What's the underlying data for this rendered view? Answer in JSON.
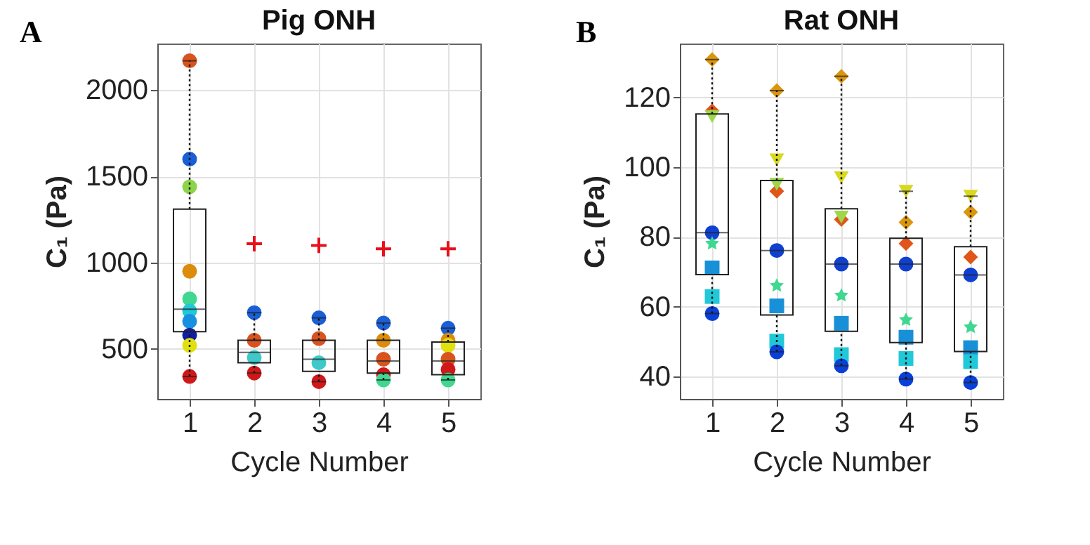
{
  "chart_data": [
    {
      "type": "box",
      "title": "Pig ONH",
      "xlabel": "Cycle Number",
      "ylabel": "C₁ (Pa)",
      "annotations": [
        "A"
      ],
      "categories": [
        "1",
        "2",
        "3",
        "4",
        "5"
      ],
      "ylim": [
        210,
        2270
      ],
      "yticks": [
        500,
        1000,
        1500,
        2000
      ],
      "grid": true,
      "line_style": "dotted",
      "boxes": [
        {
          "low": 340,
          "q1": 600,
          "median": 730,
          "q3": 1310,
          "high": 2170
        },
        {
          "low": 360,
          "q1": 420,
          "median": 480,
          "q3": 550,
          "high": 710,
          "outliers": [
            1110
          ]
        },
        {
          "low": 310,
          "q1": 370,
          "median": 440,
          "q3": 550,
          "high": 680,
          "outliers": [
            1100
          ]
        },
        {
          "low": 320,
          "q1": 360,
          "median": 430,
          "q3": 550,
          "high": 650,
          "outliers": [
            1080
          ]
        },
        {
          "low": 320,
          "q1": 350,
          "median": 430,
          "q3": 540,
          "high": 620,
          "outliers": [
            1080
          ]
        }
      ],
      "series": [
        {
          "type": "scatter",
          "marker": "circle",
          "x": [
            "1",
            "1",
            "1",
            "1",
            "1",
            "1",
            "1",
            "1",
            "1",
            "1",
            "2",
            "2",
            "2",
            "2",
            "3",
            "3",
            "3",
            "3",
            "4",
            "4",
            "4",
            "4",
            "4",
            "5",
            "5",
            "5",
            "5",
            "5",
            "5"
          ],
          "values": [
            2170,
            1600,
            1440,
            950,
            790,
            720,
            660,
            580,
            520,
            340,
            710,
            550,
            450,
            360,
            680,
            560,
            420,
            310,
            650,
            550,
            440,
            350,
            320,
            620,
            550,
            520,
            440,
            380,
            320
          ],
          "colors": [
            "#d9531e",
            "#1a5fd6",
            "#8cd44a",
            "#dc8c0a",
            "#40d890",
            "#20c8d8",
            "#1890e0",
            "#1020a0",
            "#e0e010",
            "#d01818",
            "#1a5fd6",
            "#d9531e",
            "#40c8c8",
            "#d01818",
            "#1a5fd6",
            "#d9531e",
            "#40c8c8",
            "#d01818",
            "#1a5fd6",
            "#dc8c0a",
            "#d9531e",
            "#d01818",
            "#40d890",
            "#1a5fd6",
            "#dc8c0a",
            "#e0e010",
            "#d9531e",
            "#d01818",
            "#40d890"
          ]
        }
      ]
    },
    {
      "type": "box",
      "title": "Rat ONH",
      "xlabel": "Cycle Number",
      "ylabel": "C₁ (Pa)",
      "annotations": [
        "B"
      ],
      "categories": [
        "1",
        "2",
        "3",
        "4",
        "5"
      ],
      "ylim": [
        33.5,
        135.5
      ],
      "yticks": [
        40,
        60,
        80,
        100,
        120
      ],
      "grid": true,
      "line_style": "dotted",
      "boxes": [
        {
          "low": 58,
          "q1": 69.2,
          "median": 81.2,
          "q3": 115.3,
          "high": 130.9
        },
        {
          "low": 47,
          "q1": 57.6,
          "median": 76.1,
          "q3": 96.2,
          "high": 122
        },
        {
          "low": 43,
          "q1": 52.9,
          "median": 72.2,
          "q3": 88.1,
          "high": 126.1
        },
        {
          "low": 39.2,
          "q1": 49.7,
          "median": 72.2,
          "q3": 79.6,
          "high": 93.1
        },
        {
          "low": 38.2,
          "q1": 47.1,
          "median": 69.1,
          "q3": 77.2,
          "high": 91.7
        }
      ],
      "series": [
        {
          "type": "scatter",
          "marker": "diamond",
          "color": "#d9960e",
          "values": [
            130.9,
            122,
            126.1,
            84.2,
            87.1
          ]
        },
        {
          "type": "scatter",
          "marker": "diamond",
          "color": "#e0561a",
          "values": [
            116.2,
            93.1,
            85,
            78.1,
            74.2
          ]
        },
        {
          "type": "scatter",
          "marker": "triangle",
          "color": "#9ed84a",
          "values": [
            114.5,
            95.1,
            85.7,
            null,
            null
          ]
        },
        {
          "type": "scatter",
          "marker": "triangle",
          "color": "#d8d81e",
          "values": [
            null,
            102.1,
            97,
            93.1,
            91.7
          ]
        },
        {
          "type": "scatter",
          "marker": "circle",
          "color": "#1040d0",
          "values": [
            81.2,
            76.1,
            72.2,
            72.2,
            69.1
          ]
        },
        {
          "type": "scatter",
          "marker": "star",
          "color": "#40d890",
          "values": [
            78.1,
            66,
            63.2,
            56.2,
            54.1
          ]
        },
        {
          "type": "scatter",
          "marker": "square",
          "color": "#1890d8",
          "values": [
            71.1,
            60.2,
            55.2,
            51.2,
            48.2
          ]
        },
        {
          "type": "scatter",
          "marker": "square",
          "color": "#20c8d8",
          "values": [
            62.9,
            50.1,
            46.2,
            45.1,
            44.2
          ]
        },
        {
          "type": "scatter",
          "marker": "circle",
          "color": "#0a40d8",
          "values": [
            58,
            47,
            43,
            39.2,
            38.2
          ]
        }
      ]
    }
  ]
}
